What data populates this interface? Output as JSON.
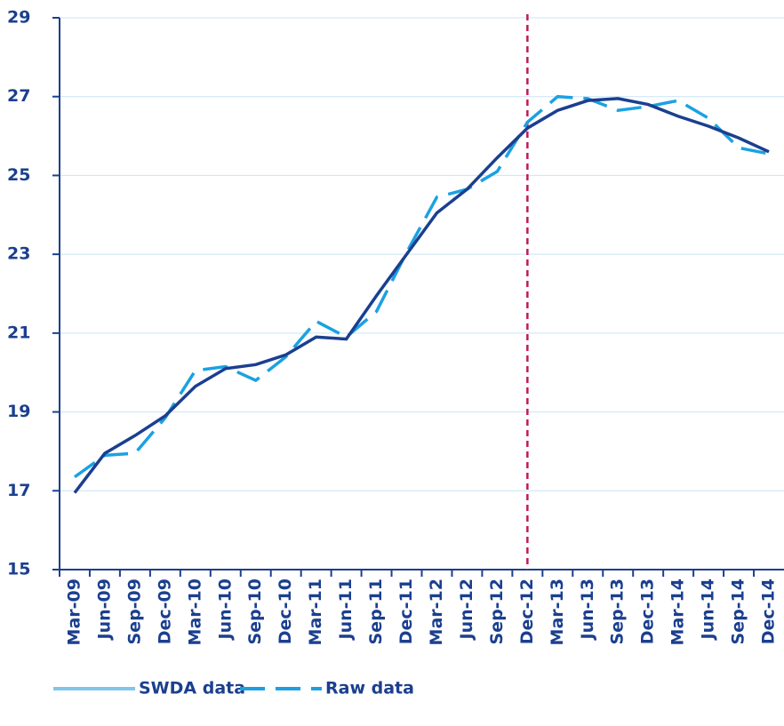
{
  "chart_data": {
    "type": "line",
    "categories": [
      "Mar-09",
      "Jun-09",
      "Sep-09",
      "Dec-09",
      "Mar-10",
      "Jun-10",
      "Sep-10",
      "Dec-10",
      "Mar-11",
      "Jun-11",
      "Sep-11",
      "Dec-11",
      "Mar-12",
      "Jun-12",
      "Sep-12",
      "Dec-12",
      "Mar-13",
      "Jun-13",
      "Sep-13",
      "Dec-13",
      "Mar-14",
      "Jun-14",
      "Sep-14",
      "Dec-14"
    ],
    "series": [
      {
        "name": "SWDA data",
        "color": "#1b3f8f",
        "legend_color": "#7fc6ea",
        "dash": false,
        "values": [
          16.95,
          17.95,
          18.4,
          18.9,
          19.65,
          20.1,
          20.2,
          20.45,
          20.9,
          20.85,
          21.95,
          23.0,
          24.05,
          24.65,
          25.45,
          26.2,
          26.65,
          26.9,
          26.95,
          26.8,
          26.5,
          26.25,
          25.95,
          25.6
        ]
      },
      {
        "name": "Raw data",
        "color": "#1ba1e2",
        "legend_color": "#1ba1e2",
        "dash": true,
        "values": [
          17.35,
          17.9,
          17.95,
          18.85,
          20.05,
          20.15,
          19.8,
          20.4,
          21.3,
          20.9,
          21.55,
          23.05,
          24.45,
          24.65,
          25.1,
          26.35,
          27.0,
          26.95,
          26.65,
          26.75,
          26.9,
          26.45,
          25.7,
          25.55
        ]
      }
    ],
    "ylim": [
      15,
      29
    ],
    "yticks": [
      15,
      17,
      19,
      21,
      23,
      25,
      27,
      29
    ],
    "grid": true,
    "marker_line": {
      "category": "Dec-12",
      "color": "#c2185b"
    },
    "legend": "bottom"
  }
}
